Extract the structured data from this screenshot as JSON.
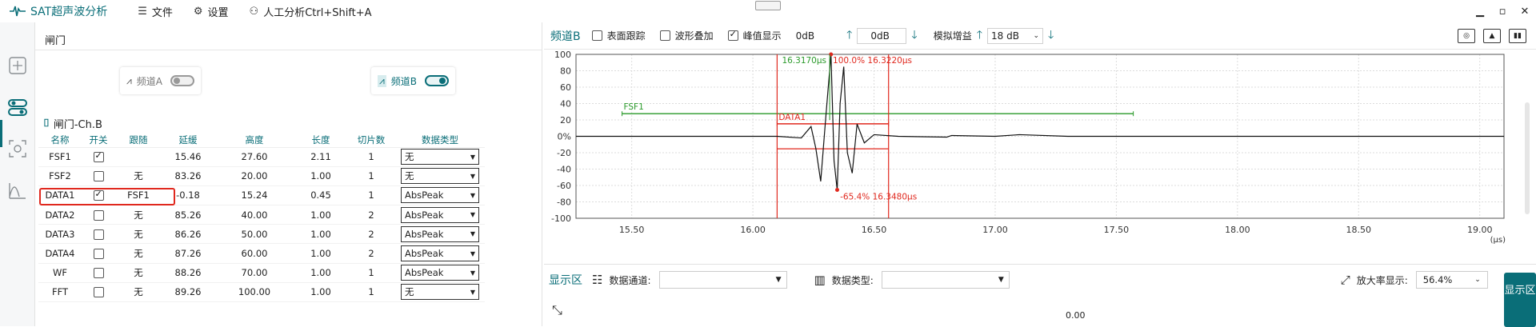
{
  "app": {
    "title": "SAT超声波分析"
  },
  "menu": [
    {
      "icon": "list-icon",
      "label": "文件"
    },
    {
      "icon": "gear-icon",
      "label": "设置"
    },
    {
      "icon": "person-icon",
      "label": "人工分析Ctrl+Shift+A"
    }
  ],
  "gate_panel": {
    "title": "闸门",
    "channels": [
      {
        "label": "频道A",
        "on": false
      },
      {
        "label": "频道B",
        "on": true
      }
    ],
    "gate_title": "闸门-Ch.B",
    "columns": [
      "名称",
      "开关",
      "跟随",
      "延缓",
      "高度",
      "长度",
      "切片数",
      "数据类型"
    ],
    "rows": [
      {
        "name": "FSF1",
        "on": true,
        "follow": "",
        "delay": "15.46",
        "height": "27.60",
        "length": "2.11",
        "slices": "1",
        "type": "无"
      },
      {
        "name": "FSF2",
        "on": false,
        "follow": "无",
        "delay": "83.26",
        "height": "20.00",
        "length": "1.00",
        "slices": "1",
        "type": "无"
      },
      {
        "name": "DATA1",
        "on": true,
        "follow": "FSF1",
        "delay": "-0.18",
        "height": "15.24",
        "length": "0.45",
        "slices": "1",
        "type": "AbsPeak"
      },
      {
        "name": "DATA2",
        "on": false,
        "follow": "无",
        "delay": "85.26",
        "height": "40.00",
        "length": "1.00",
        "slices": "2",
        "type": "AbsPeak"
      },
      {
        "name": "DATA3",
        "on": false,
        "follow": "无",
        "delay": "86.26",
        "height": "50.00",
        "length": "1.00",
        "slices": "2",
        "type": "AbsPeak"
      },
      {
        "name": "DATA4",
        "on": false,
        "follow": "无",
        "delay": "87.26",
        "height": "60.00",
        "length": "1.00",
        "slices": "2",
        "type": "AbsPeak"
      },
      {
        "name": "WF",
        "on": false,
        "follow": "无",
        "delay": "88.26",
        "height": "70.00",
        "length": "1.00",
        "slices": "1",
        "type": "AbsPeak"
      },
      {
        "name": "FFT",
        "on": false,
        "follow": "无",
        "delay": "89.26",
        "height": "100.00",
        "length": "1.00",
        "slices": "1",
        "type": "无"
      }
    ]
  },
  "chart_toolbar": {
    "channel": "频道B",
    "surface_follow": "表面跟踪",
    "surface_follow_on": false,
    "wave_overlay": "波形叠加",
    "wave_overlay_on": false,
    "peak_display": "峰值显示",
    "peak_display_on": true,
    "peak_value": "0dB",
    "offset_value": "0dB",
    "analog_gain_label": "模拟增益",
    "analog_gain_value": "18 dB"
  },
  "chart_data": {
    "type": "line",
    "xlabel": "",
    "x_unit": "(μs)",
    "ylabel": "",
    "xlim": [
      15.27,
      19.1
    ],
    "ylim": [
      -100,
      100
    ],
    "x_ticks": [
      "15.50",
      "16.00",
      "16.50",
      "17.00",
      "17.50",
      "18.00",
      "18.50",
      "19.00"
    ],
    "y_ticks": [
      "100",
      "80",
      "60",
      "40",
      "20",
      "0%",
      "-20",
      "-40",
      "-60",
      "-80",
      "-100"
    ],
    "grid": true,
    "waveform": [
      [
        15.27,
        0
      ],
      [
        15.9,
        0
      ],
      [
        16.1,
        0
      ],
      [
        16.2,
        -2
      ],
      [
        16.24,
        12
      ],
      [
        16.26,
        -15
      ],
      [
        16.28,
        -55
      ],
      [
        16.3,
        20
      ],
      [
        16.3223,
        100
      ],
      [
        16.335,
        -30
      ],
      [
        16.348,
        -65.4
      ],
      [
        16.36,
        40
      ],
      [
        16.375,
        85
      ],
      [
        16.39,
        -20
      ],
      [
        16.41,
        -45
      ],
      [
        16.43,
        15
      ],
      [
        16.46,
        -8
      ],
      [
        16.5,
        2
      ],
      [
        16.6,
        0
      ],
      [
        16.8,
        -1
      ],
      [
        16.82,
        1
      ],
      [
        17.0,
        0
      ],
      [
        17.1,
        2
      ],
      [
        17.3,
        0
      ],
      [
        19.1,
        0
      ]
    ],
    "gates": [
      {
        "name": "FSF1",
        "start": 15.46,
        "end": 17.57,
        "level": 27.6,
        "color": "#2a9a2a"
      },
      {
        "name": "DATA1",
        "start": 16.1,
        "end": 16.56,
        "level": 15.24,
        "color": "#e0281e"
      }
    ],
    "cursors": [
      16.1,
      16.56
    ],
    "annotations": [
      {
        "text": "16.3170μs",
        "color": "#2a9a2a"
      },
      {
        "text": "100.0% 16.3220μs",
        "color": "#e0281e"
      },
      {
        "text": "-65.4% 16.3480μs",
        "color": "#e0281e"
      }
    ]
  },
  "bottom": {
    "label": "显示区",
    "data_channel": "数据通道:",
    "data_type": "数据类型:",
    "zoom_label": "放大率显示:",
    "zoom_value": "56.4%",
    "side_tab": "显示区",
    "zero": "0.00"
  }
}
